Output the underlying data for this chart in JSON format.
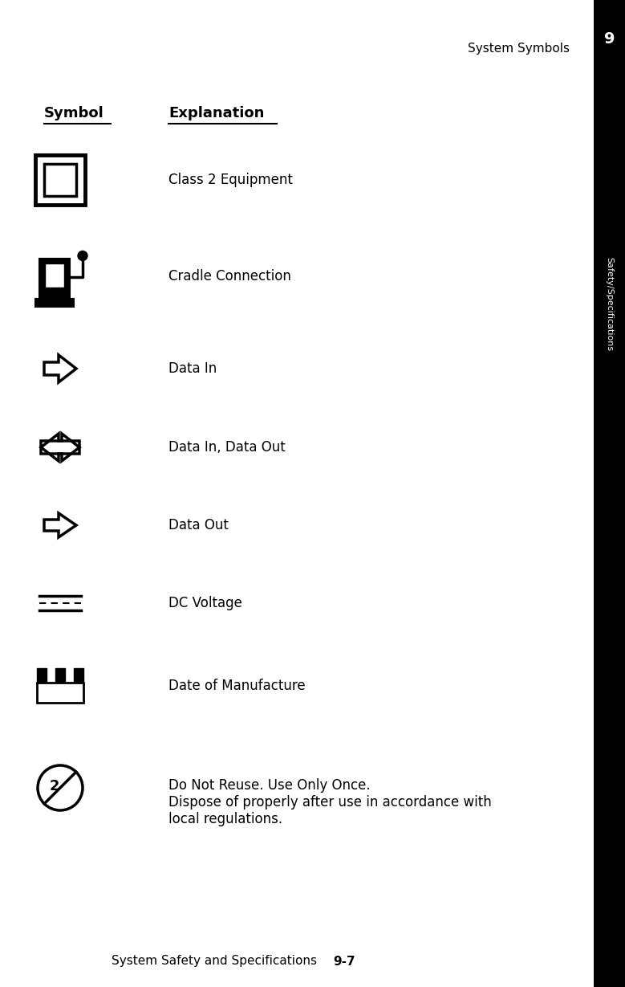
{
  "page_title_right": "System Symbols",
  "sidebar_text": "Safety/Specifications",
  "sidebar_number": "9",
  "header_symbol": "Symbol",
  "header_explanation": "Explanation",
  "footer_text": "System Safety and Specifications",
  "footer_page": "9-7",
  "rows": [
    {
      "explanation": "Class 2 Equipment"
    },
    {
      "explanation": "Cradle Connection"
    },
    {
      "explanation": "Data In"
    },
    {
      "explanation": "Data In, Data Out"
    },
    {
      "explanation": "Data Out"
    },
    {
      "explanation": "DC Voltage"
    },
    {
      "explanation": "Date of Manufacture"
    },
    {
      "explanation": "Do Not Reuse. Use Only Once.\nDispose of properly after use in accordance with\nlocal regulations."
    }
  ],
  "bg_color": "#ffffff",
  "text_color": "#000000",
  "sidebar_bg": "#000000",
  "sidebar_fg": "#ffffff"
}
